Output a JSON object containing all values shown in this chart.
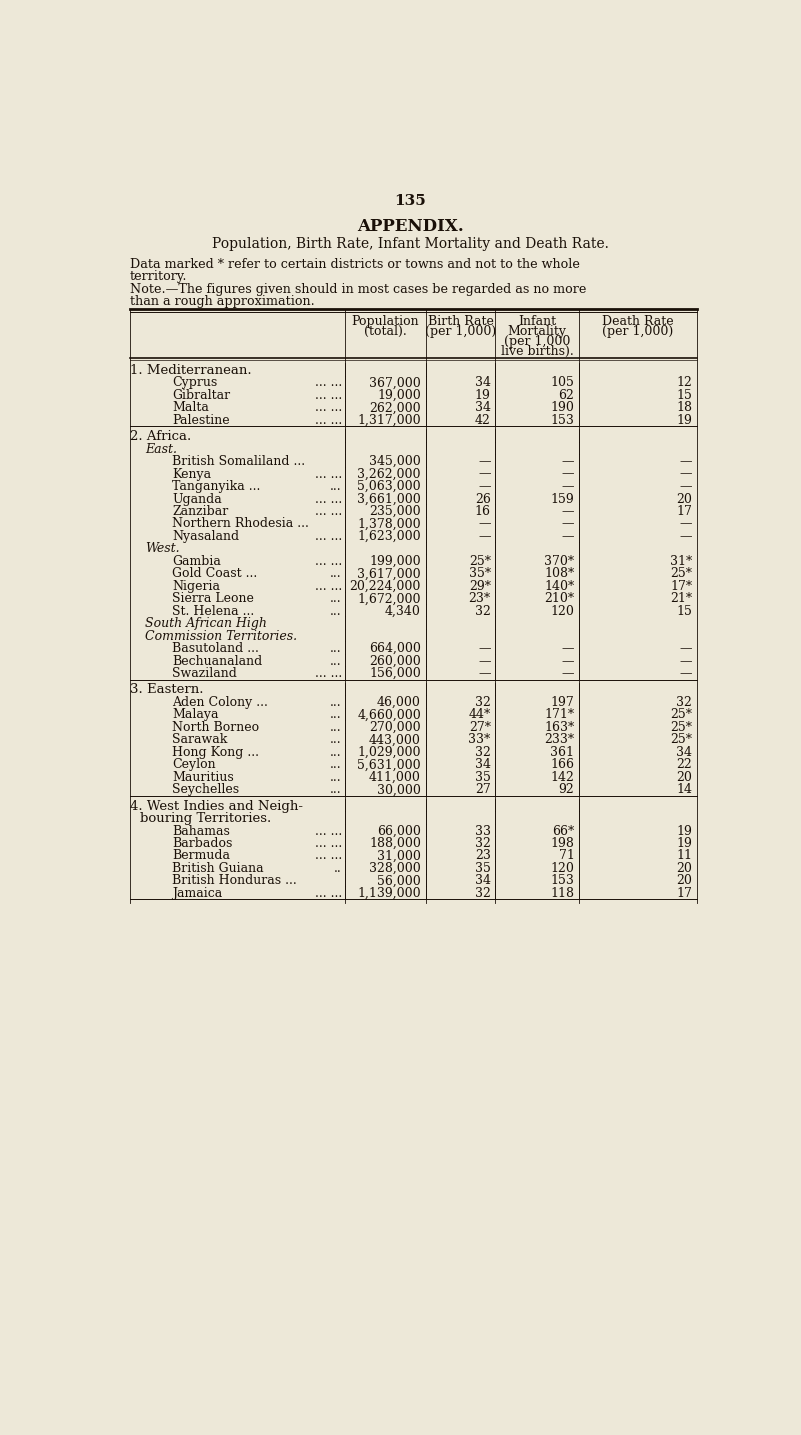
{
  "bg_color": "#ede8d8",
  "text_color": "#1a1008",
  "page_number": "135",
  "title": "APPENDIX.",
  "subtitle": "Population, Birth Rate, Infant Mortality and Death Rate.",
  "note1": "Data marked * refer to certain districts or towns and not to the whole",
  "note1b": "territory.",
  "note2": "Note.—The figures given should in most cases be regarded as no more",
  "note2b": "than a rough approximation.",
  "col_headers": [
    [
      "Population",
      "(total)."
    ],
    [
      "Birth Rate",
      "(per 1,000)"
    ],
    [
      "Infant",
      "Mortality",
      "(per 1,000",
      "live births)."
    ],
    [
      "Death Rate",
      "(per 1,000)"
    ]
  ],
  "sections": [
    {
      "num": "1.",
      "name": "Mediterranean.",
      "name_smallcaps": true,
      "subsections": [
        {
          "name": null,
          "italic": false,
          "extra_lines": 0,
          "rows": [
            [
              "Cyprus",
              "... ...",
              "367,000",
              "34",
              "105",
              "12"
            ],
            [
              "Gibraltar",
              "... ...",
              "19,000",
              "19",
              "62",
              "15"
            ],
            [
              "Malta",
              "... ...",
              "262,000",
              "34",
              "190",
              "18"
            ],
            [
              "Palestine",
              "... ...",
              "1,317,000",
              "42",
              "153",
              "19"
            ]
          ]
        }
      ]
    },
    {
      "num": "2.",
      "name": "Africa.",
      "name_smallcaps": true,
      "subsections": [
        {
          "name": "East.",
          "italic": true,
          "extra_lines": 0,
          "rows": [
            [
              "British Somaliland ...",
              "",
              "345,000",
              "—",
              "—",
              "—"
            ],
            [
              "Kenya",
              "... ...",
              "3,262,000",
              "—",
              "—",
              "—"
            ],
            [
              "Tanganyika ...",
              "...",
              "5,063,000",
              "—",
              "—",
              "—"
            ],
            [
              "Uganda",
              "... ...",
              "3,661,000",
              "26",
              "159",
              "20"
            ],
            [
              "Zanzibar",
              "... ...",
              "235,000",
              "16",
              "—",
              "17"
            ],
            [
              "Northern Rhodesia ...",
              "",
              "1,378,000",
              "—",
              "—",
              "—"
            ],
            [
              "Nyasaland",
              "... ...",
              "1,623,000",
              "—",
              "—",
              "—"
            ]
          ]
        },
        {
          "name": "West.",
          "italic": true,
          "extra_lines": 0,
          "rows": [
            [
              "Gambia",
              "... ...",
              "199,000",
              "25*",
              "370*",
              "31*"
            ],
            [
              "Gold Coast ...",
              "...",
              "3,617,000",
              "35*",
              "108*",
              "25*"
            ],
            [
              "Nigeria",
              "... ...",
              "20,224,000",
              "29*",
              "140*",
              "17*"
            ],
            [
              "Sierra Leone",
              "...",
              "1,672,000",
              "23*",
              "210*",
              "21*"
            ],
            [
              "St. Helena ...",
              "...",
              "4,340",
              "32",
              "120",
              "15"
            ]
          ]
        },
        {
          "name": "South African High",
          "name2": "Commission Territories.",
          "italic": true,
          "extra_lines": 1,
          "rows": [
            [
              "Basutoland ...",
              "...",
              "664,000",
              "—",
              "—",
              "—"
            ],
            [
              "Bechuanaland",
              "...",
              "260,000",
              "—",
              "—",
              "—"
            ],
            [
              "Swaziland",
              "... ...",
              "156,000",
              "—",
              "—",
              "—"
            ]
          ]
        }
      ]
    },
    {
      "num": "3.",
      "name": "Eastern.",
      "name_smallcaps": true,
      "subsections": [
        {
          "name": null,
          "italic": false,
          "extra_lines": 0,
          "rows": [
            [
              "Aden Colony ...",
              "...",
              "46,000",
              "32",
              "197",
              "32"
            ],
            [
              "Malaya",
              "...",
              "4,660,000",
              "44*",
              "171*",
              "25*"
            ],
            [
              "North Borneo",
              "...",
              "270,000",
              "27*",
              "163*",
              "25*"
            ],
            [
              "Sarawak",
              "...",
              "443,000",
              "33*",
              "233*",
              "25*"
            ],
            [
              "Hong Kong ...",
              "...",
              "1,029,000",
              "32",
              "361",
              "34"
            ],
            [
              "Ceylon",
              "...",
              "5,631,000",
              "34",
              "166",
              "22"
            ],
            [
              "Mauritius",
              "...",
              "411,000",
              "35",
              "142",
              "20"
            ],
            [
              "Seychelles",
              "...",
              "30,000",
              "27",
              "92",
              "14"
            ]
          ]
        }
      ]
    },
    {
      "num": "4.",
      "name": "West Indies and Neigh-",
      "name2": "bouring Territories.",
      "name_smallcaps": true,
      "extra_header_lines": 1,
      "subsections": [
        {
          "name": null,
          "italic": false,
          "extra_lines": 0,
          "rows": [
            [
              "Bahamas",
              "... ...",
              "66,000",
              "33",
              "66*",
              "19"
            ],
            [
              "Barbados",
              "... ...",
              "188,000",
              "32",
              "198",
              "19"
            ],
            [
              "Bermuda",
              "... ...",
              "31,000",
              "23",
              "71",
              "11"
            ],
            [
              "British Guiana",
              "..",
              "328,000",
              "35",
              "120",
              "20"
            ],
            [
              "British Honduras ...",
              "",
              "56,000",
              "34",
              "153",
              "20"
            ],
            [
              "Jamaica",
              "... ...",
              "1,139,000",
              "32",
              "118",
              "17"
            ]
          ]
        }
      ]
    }
  ]
}
